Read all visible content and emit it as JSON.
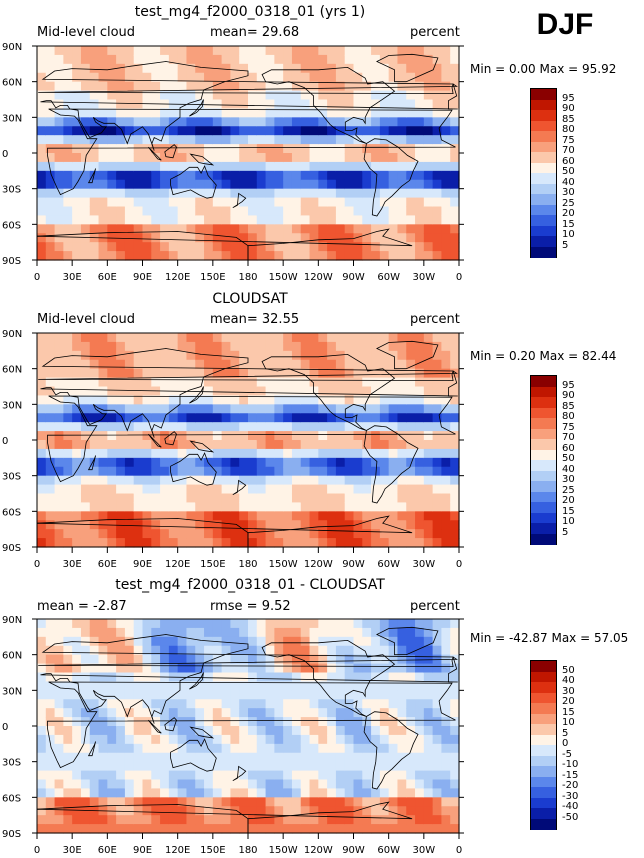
{
  "season": "DJF",
  "panels": [
    {
      "title": "test_mg4_f2000_0318_01 (yrs 1)",
      "left_text": "Mid-level cloud",
      "center_text": "mean=  29.68",
      "right_text": "percent",
      "minmax": "Min =    0.00 Max =   95.92",
      "colorbar": {
        "labels": [
          "95",
          "90",
          "85",
          "80",
          "75",
          "70",
          "60",
          "50",
          "40",
          "30",
          "25",
          "20",
          "15",
          "10",
          "5"
        ],
        "colors": [
          "#8a0000",
          "#c01600",
          "#dd3010",
          "#ef5530",
          "#f47a52",
          "#f8a07c",
          "#fbc8ab",
          "#fff3e6",
          "#d7e8fb",
          "#b2cff5",
          "#8aaff0",
          "#5b87eb",
          "#3660e0",
          "#1a3ccf",
          "#0a1ea8",
          "#000a78"
        ]
      }
    },
    {
      "title": "CLOUDSAT",
      "left_text": "Mid-level cloud",
      "center_text": "mean=  32.55",
      "right_text": "percent",
      "minmax": "Min =    0.20 Max =   82.44",
      "colorbar": {
        "labels": [
          "95",
          "90",
          "85",
          "80",
          "75",
          "70",
          "60",
          "50",
          "40",
          "30",
          "25",
          "20",
          "15",
          "10",
          "5"
        ],
        "colors": [
          "#8a0000",
          "#c01600",
          "#dd3010",
          "#ef5530",
          "#f47a52",
          "#f8a07c",
          "#fbc8ab",
          "#fff3e6",
          "#d7e8fb",
          "#b2cff5",
          "#8aaff0",
          "#5b87eb",
          "#3660e0",
          "#1a3ccf",
          "#0a1ea8",
          "#000a78"
        ]
      }
    },
    {
      "title": "test_mg4_f2000_0318_01 - CLOUDSAT",
      "left_text": "mean =  -2.87",
      "center_text": "rmse =   9.52",
      "right_text": "percent",
      "minmax": "Min = -42.87 Max =  57.05",
      "colorbar": {
        "labels": [
          "50",
          "40",
          "30",
          "20",
          "15",
          "10",
          "5",
          "0",
          "-5",
          "-10",
          "-15",
          "-20",
          "-30",
          "-40",
          "-50"
        ],
        "colors": [
          "#8a0000",
          "#c01600",
          "#dd3010",
          "#ef5530",
          "#f47a52",
          "#f8a07c",
          "#fbc8ab",
          "#fff3e6",
          "#d7e8fb",
          "#b2cff5",
          "#8aaff0",
          "#5b87eb",
          "#3660e0",
          "#1a3ccf",
          "#0a1ea8",
          "#000a78"
        ]
      }
    }
  ],
  "axes": {
    "lat_labels": [
      "90N",
      "60N",
      "30N",
      "0",
      "30S",
      "60S",
      "90S"
    ],
    "lon_labels": [
      "0",
      "30E",
      "60E",
      "90E",
      "120E",
      "150E",
      "180",
      "150W",
      "120W",
      "90W",
      "60W",
      "30W",
      "0"
    ]
  }
}
